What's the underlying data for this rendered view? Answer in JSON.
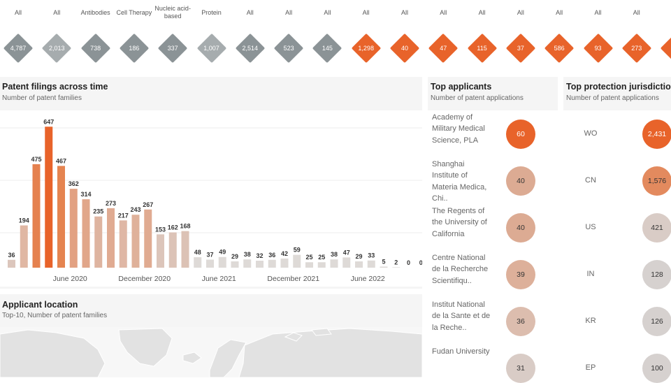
{
  "filters": [
    {
      "label": "All",
      "value": "4,787",
      "color": "#8b9396"
    },
    {
      "label": "All",
      "value": "2,013",
      "color": "#a6acae"
    },
    {
      "label": "Antibodies",
      "value": "738",
      "color": "#8b9396"
    },
    {
      "label": "Cell Therapy",
      "value": "186",
      "color": "#8b9396"
    },
    {
      "label": "Nucleic acid-based",
      "value": "337",
      "color": "#8b9396"
    },
    {
      "label": "Protein",
      "value": "1,007",
      "color": "#a6acae"
    },
    {
      "label": "All",
      "value": "2,514",
      "color": "#8b9396"
    },
    {
      "label": "All",
      "value": "523",
      "color": "#8b9396"
    },
    {
      "label": "All",
      "value": "145",
      "color": "#8b9396"
    },
    {
      "label": "All",
      "value": "1,298",
      "color": "#e8632a"
    },
    {
      "label": "All",
      "value": "40",
      "color": "#e8632a"
    },
    {
      "label": "All",
      "value": "47",
      "color": "#e8632a"
    },
    {
      "label": "All",
      "value": "115",
      "color": "#e8632a"
    },
    {
      "label": "All",
      "value": "37",
      "color": "#e8632a"
    },
    {
      "label": "All",
      "value": "586",
      "color": "#e8632a"
    },
    {
      "label": "All",
      "value": "93",
      "color": "#e8632a"
    },
    {
      "label": "All",
      "value": "273",
      "color": "#e8632a"
    },
    {
      "label": "",
      "value": "",
      "color": "#e8632a"
    }
  ],
  "filings": {
    "title": "Patent filings across time",
    "subtitle": "Number of patent families"
  },
  "chart_data": {
    "type": "bar",
    "values": [
      36,
      194,
      475,
      647,
      467,
      362,
      314,
      235,
      273,
      217,
      243,
      267,
      153,
      162,
      168,
      48,
      37,
      49,
      29,
      38,
      32,
      36,
      42,
      59,
      25,
      25,
      38,
      47,
      29,
      33,
      5,
      2,
      0,
      0
    ],
    "value_labels": [
      "36",
      "194",
      "475",
      "647",
      "467",
      "362",
      "314",
      "235",
      "273",
      "217",
      "243",
      "267",
      "153",
      "162",
      "168",
      "48",
      "37",
      "49",
      "29",
      "38",
      "32",
      "36",
      "42",
      "59",
      "25",
      "25",
      "38",
      "47",
      "29",
      "33",
      "5",
      "2",
      "0",
      "0"
    ],
    "tick_labels": [
      "June 2020",
      "December 2020",
      "June 2021",
      "December 2021",
      "June 2022"
    ],
    "bar_colors": [
      "#dcc6bc",
      "#e0b7a3",
      "#e5814f",
      "#e8632a",
      "#e58450",
      "#e2a182",
      "#e1a68a",
      "#deb4a0",
      "#e0ab92",
      "#dfb7a5",
      "#dfb19a",
      "#e0ab91",
      "#dcc5ba",
      "#dcc3b7",
      "#dcc2b5",
      "#dedad7",
      "#dedad7",
      "#dedad7",
      "#dedad7",
      "#dedad7",
      "#dedad7",
      "#dedad7",
      "#dedad7",
      "#dedad7",
      "#dedad7",
      "#dedad7",
      "#dedad7",
      "#dedad7",
      "#dedad7",
      "#dedad7",
      "#dedad7",
      "#dedad7",
      "#dedad7",
      "#dedad7"
    ],
    "ylim": [
      0,
      700
    ]
  },
  "location": {
    "title": "Applicant location",
    "subtitle": "Top-10, Number of patent families"
  },
  "applicants": {
    "title": "Top applicants",
    "subtitle": "Number of patent applications",
    "items": [
      {
        "name": "Academy of Military Medical Science, PLA",
        "value": "60",
        "color": "#e8632a",
        "text_color": "#ffffff"
      },
      {
        "name": "Shanghai Institute of Materia Medica, Chi..",
        "value": "40",
        "color": "#dcab93",
        "text_color": "#333333"
      },
      {
        "name": "The Regents of the University of California",
        "value": "40",
        "color": "#dcab93",
        "text_color": "#333333"
      },
      {
        "name": "Centre National de la Recherche Scientifiqu..",
        "value": "39",
        "color": "#ddb09a",
        "text_color": "#333333"
      },
      {
        "name": "Institut National de la Sante et de la Reche..",
        "value": "36",
        "color": "#dcbdae",
        "text_color": "#333333"
      },
      {
        "name": "Fudan University",
        "value": "31",
        "color": "#d9ccc6",
        "text_color": "#333333"
      }
    ]
  },
  "jurisdictions": {
    "title": "Top protection jurisdictions",
    "subtitle": "Number of patent applications",
    "items": [
      {
        "code": "WO",
        "value": "2,431",
        "color": "#e8632a",
        "text_color": "#ffffff"
      },
      {
        "code": "CN",
        "value": "1,576",
        "color": "#e38a5e",
        "text_color": "#333333"
      },
      {
        "code": "US",
        "value": "421",
        "color": "#d9ccc6",
        "text_color": "#333333"
      },
      {
        "code": "IN",
        "value": "128",
        "color": "#d6d1cf",
        "text_color": "#333333"
      },
      {
        "code": "KR",
        "value": "126",
        "color": "#d6d1cf",
        "text_color": "#333333"
      },
      {
        "code": "EP",
        "value": "100",
        "color": "#d6d1cf",
        "text_color": "#333333"
      }
    ]
  }
}
